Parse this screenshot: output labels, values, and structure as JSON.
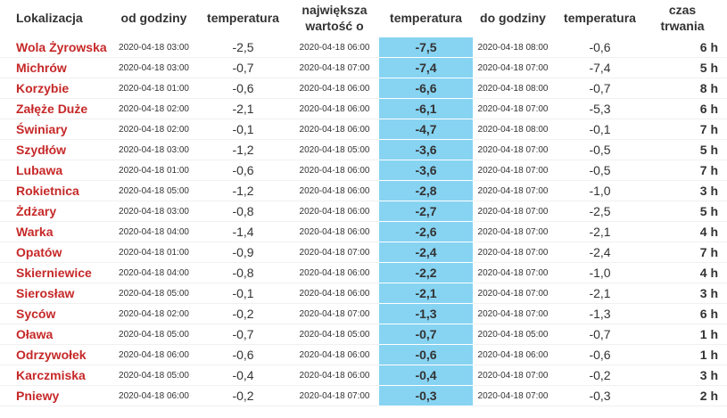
{
  "table": {
    "header": [
      "Lokalizacja",
      "od godziny",
      "temperatura",
      "największa wartość o",
      "temperatura",
      "do godziny",
      "temperatura",
      "czas trwania"
    ],
    "rows": [
      [
        "Wola Żyrowska",
        "2020-04-18 03:00",
        "-2,5",
        "2020-04-18 06:00",
        "-7,5",
        "2020-04-18 08:00",
        "-0,6",
        "6 h"
      ],
      [
        "Michrów",
        "2020-04-18 03:00",
        "-0,7",
        "2020-04-18 07:00",
        "-7,4",
        "2020-04-18 07:00",
        "-7,4",
        "5 h"
      ],
      [
        "Korzybie",
        "2020-04-18 01:00",
        "-0,6",
        "2020-04-18 06:00",
        "-6,6",
        "2020-04-18 08:00",
        "-0,7",
        "8 h"
      ],
      [
        "Załęże Duże",
        "2020-04-18 02:00",
        "-2,1",
        "2020-04-18 06:00",
        "-6,1",
        "2020-04-18 07:00",
        "-5,3",
        "6 h"
      ],
      [
        "Świniary",
        "2020-04-18 02:00",
        "-0,1",
        "2020-04-18 06:00",
        "-4,7",
        "2020-04-18 08:00",
        "-0,1",
        "7 h"
      ],
      [
        "Szydłów",
        "2020-04-18 03:00",
        "-1,2",
        "2020-04-18 05:00",
        "-3,6",
        "2020-04-18 07:00",
        "-0,5",
        "5 h"
      ],
      [
        "Lubawa",
        "2020-04-18 01:00",
        "-0,6",
        "2020-04-18 06:00",
        "-3,6",
        "2020-04-18 07:00",
        "-0,5",
        "7 h"
      ],
      [
        "Rokietnica",
        "2020-04-18 05:00",
        "-1,2",
        "2020-04-18 06:00",
        "-2,8",
        "2020-04-18 07:00",
        "-1,0",
        "3 h"
      ],
      [
        "Żdżary",
        "2020-04-18 03:00",
        "-0,8",
        "2020-04-18 06:00",
        "-2,7",
        "2020-04-18 07:00",
        "-2,5",
        "5 h"
      ],
      [
        "Warka",
        "2020-04-18 04:00",
        "-1,4",
        "2020-04-18 06:00",
        "-2,6",
        "2020-04-18 07:00",
        "-2,1",
        "4 h"
      ],
      [
        "Opatów",
        "2020-04-18 01:00",
        "-0,9",
        "2020-04-18 07:00",
        "-2,4",
        "2020-04-18 07:00",
        "-2,4",
        "7 h"
      ],
      [
        "Skierniewice",
        "2020-04-18 04:00",
        "-0,8",
        "2020-04-18 06:00",
        "-2,2",
        "2020-04-18 07:00",
        "-1,0",
        "4 h"
      ],
      [
        "Sierosław",
        "2020-04-18 05:00",
        "-0,1",
        "2020-04-18 06:00",
        "-2,1",
        "2020-04-18 07:00",
        "-2,1",
        "3 h"
      ],
      [
        "Syców",
        "2020-04-18 02:00",
        "-0,2",
        "2020-04-18 07:00",
        "-1,3",
        "2020-04-18 07:00",
        "-1,3",
        "6 h"
      ],
      [
        "Oława",
        "2020-04-18 05:00",
        "-0,7",
        "2020-04-18 05:00",
        "-0,7",
        "2020-04-18 05:00",
        "-0,7",
        "1 h"
      ],
      [
        "Odrzywołek",
        "2020-04-18 06:00",
        "-0,6",
        "2020-04-18 06:00",
        "-0,6",
        "2020-04-18 06:00",
        "-0,6",
        "1 h"
      ],
      [
        "Karczmiska",
        "2020-04-18 05:00",
        "-0,4",
        "2020-04-18 06:00",
        "-0,4",
        "2020-04-18 07:00",
        "-0,2",
        "3 h"
      ],
      [
        "Pniewy",
        "2020-04-18 06:00",
        "-0,2",
        "2020-04-18 07:00",
        "-0,3",
        "2020-04-18 07:00",
        "-0,3",
        "2 h"
      ]
    ]
  }
}
